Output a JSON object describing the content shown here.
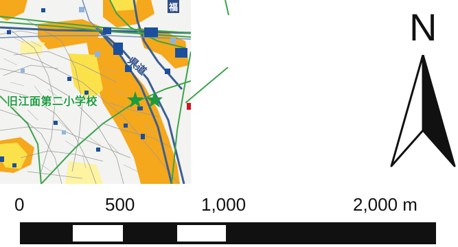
{
  "map": {
    "school_label": "旧江面第二小学校",
    "road_label_top": "福",
    "road_label_diag": "県道",
    "legend_colors": {
      "flood_orange": "#f5a81c",
      "flood_yellow": "#fce24a",
      "flood_pale": "#fdf3a0",
      "building_blue": "#1c4f9c",
      "road_blue": "#3b5f93",
      "rail_green": "#3aa34a",
      "star_green": "#1e9a3e"
    },
    "icons": [
      "star-icon",
      "star-icon"
    ]
  },
  "north": {
    "letter": "N"
  },
  "scale": {
    "labels": [
      "0",
      "500",
      "1,000",
      "2,000 m"
    ]
  }
}
